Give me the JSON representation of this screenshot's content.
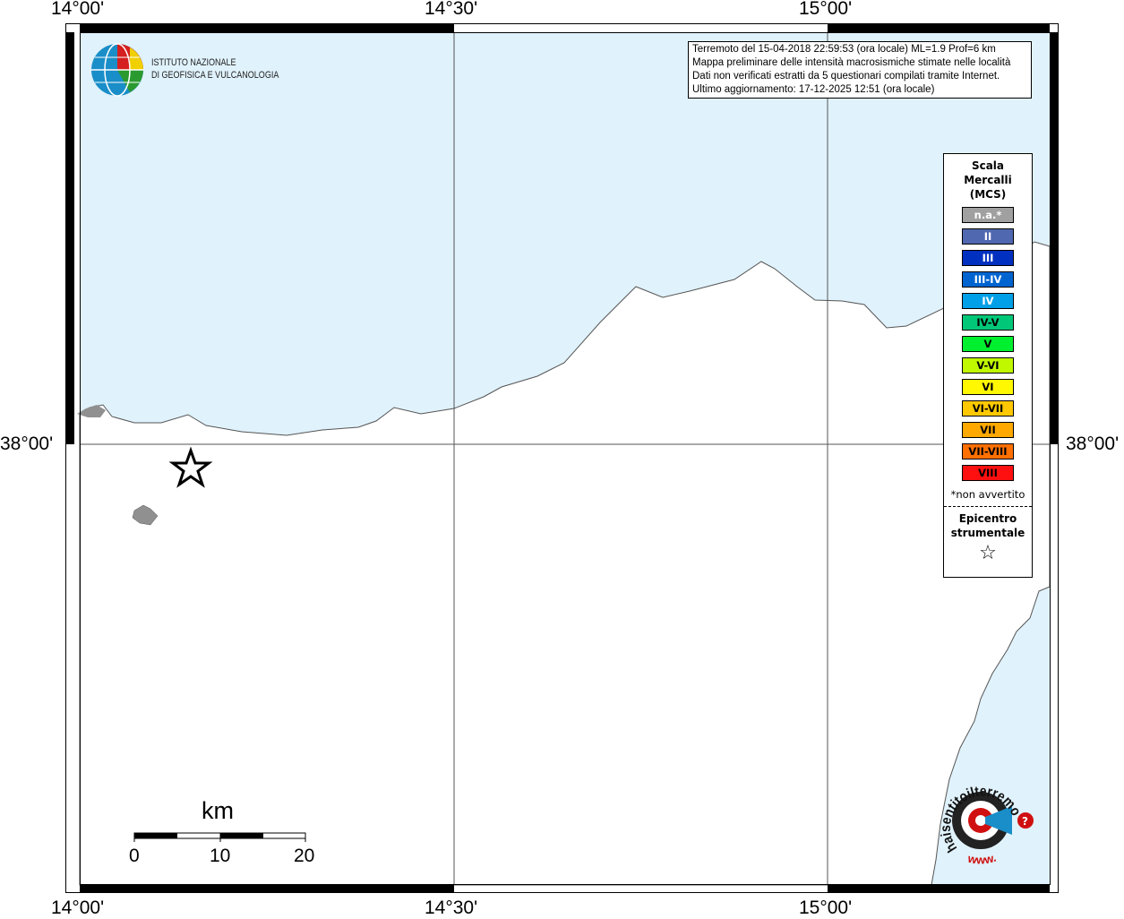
{
  "ticks": {
    "top": [
      "14°00'",
      "14°30'",
      "15°00'"
    ],
    "bottom": [
      "14°00'",
      "14°30'",
      "15°00'"
    ],
    "left": "38°00'",
    "right": "38°00'"
  },
  "logo": {
    "line1": "ISTITUTO NAZIONALE",
    "line2": "DI GEOFISICA E VULCANOLOGIA"
  },
  "info": [
    "Terremoto del 15-04-2018 22:59:53 (ora locale) ML=1.9 Prof=6 km",
    "Mappa preliminare delle intensità macrosismiche stimate nelle località",
    "Dati non verificati estratti da 5 questionari compilati tramite Internet.",
    "Ultimo aggiornamento: 17-12-2025 12:51 (ora locale)"
  ],
  "legend": {
    "title": "Scala\nMercalli\n(MCS)",
    "items": [
      {
        "label": "n.a.*",
        "color": "#a0a0a0",
        "text": "#fff"
      },
      {
        "label": "II",
        "color": "#5068b0",
        "text": "#fff"
      },
      {
        "label": "III",
        "color": "#0030c0",
        "text": "#fff"
      },
      {
        "label": "III-IV",
        "color": "#0064d0",
        "text": "#fff"
      },
      {
        "label": "IV",
        "color": "#00a0e8",
        "text": "#fff"
      },
      {
        "label": "IV-V",
        "color": "#00c878",
        "text": "#000"
      },
      {
        "label": "V",
        "color": "#00f030",
        "text": "#000"
      },
      {
        "label": "V-VI",
        "color": "#c0f800",
        "text": "#000"
      },
      {
        "label": "VI",
        "color": "#fff800",
        "text": "#000"
      },
      {
        "label": "VI-VII",
        "color": "#ffc800",
        "text": "#000"
      },
      {
        "label": "VII",
        "color": "#ffa800",
        "text": "#000"
      },
      {
        "label": "VII-VIII",
        "color": "#ff7000",
        "text": "#000"
      },
      {
        "label": "VIII",
        "color": "#ff1010",
        "text": "#000"
      }
    ],
    "note": "*non avvertito",
    "epicenter": "Epicentro\nstrumentale"
  },
  "scalebar": {
    "unit": "km",
    "labels": [
      "0",
      "10",
      "20"
    ]
  },
  "colors": {
    "sea": "#e0f2fc",
    "land": "#ffffff",
    "island": "#909090"
  },
  "haisentito": {
    "text": "haisentitoilterremoto.it",
    "url_text": "www."
  }
}
